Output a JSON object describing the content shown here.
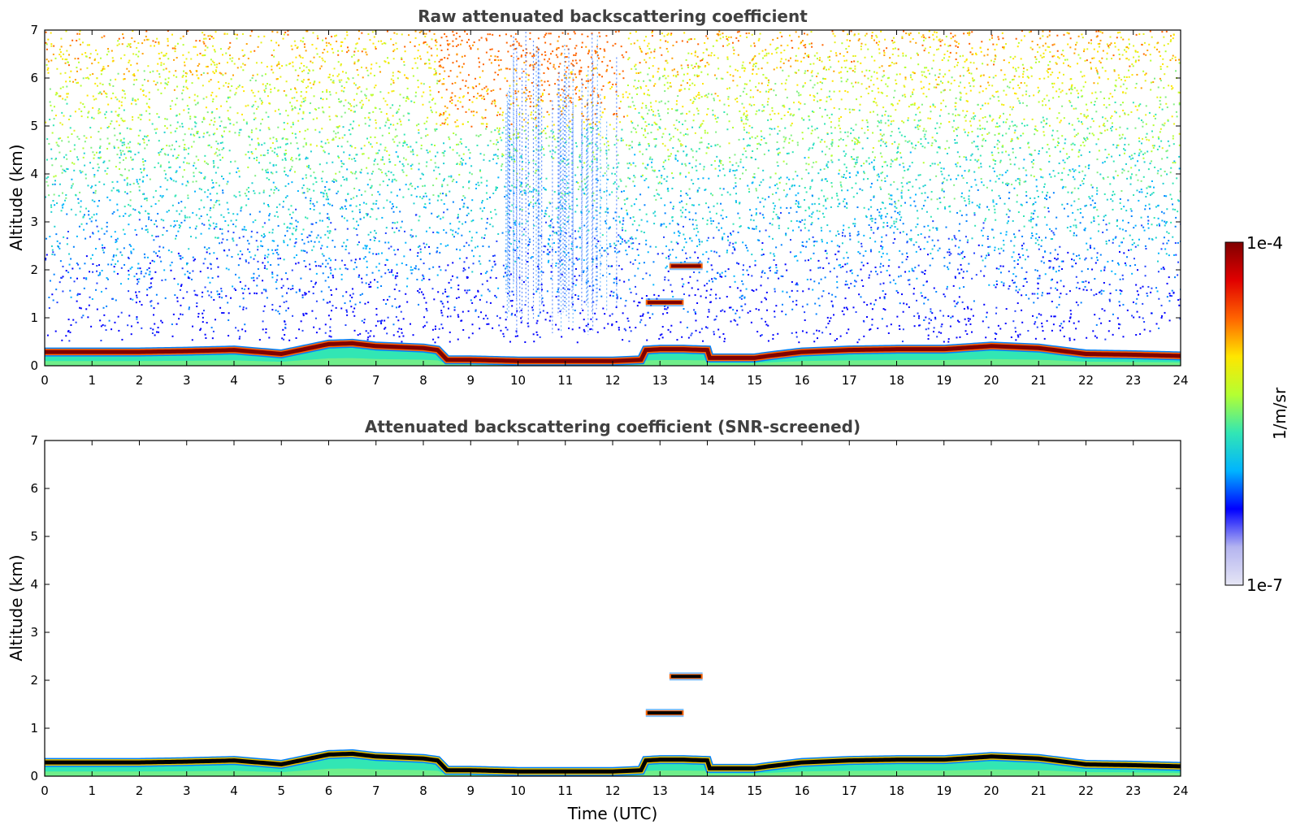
{
  "chart_data": [
    {
      "type": "heatmap",
      "title": "Raw attenuated backscattering coefficient",
      "xlabel": "",
      "ylabel": "Altitude (km)",
      "xlim": [
        0,
        24
      ],
      "ylim": [
        0,
        7
      ],
      "xticks": [
        0,
        1,
        2,
        3,
        4,
        5,
        6,
        7,
        8,
        9,
        10,
        11,
        12,
        13,
        14,
        15,
        16,
        17,
        18,
        19,
        20,
        21,
        22,
        23,
        24
      ],
      "yticks": [
        0,
        1,
        2,
        3,
        4,
        5,
        6,
        7
      ],
      "boundary_layer_top_km": [
        [
          0,
          0.35
        ],
        [
          1,
          0.35
        ],
        [
          2,
          0.35
        ],
        [
          3,
          0.37
        ],
        [
          4,
          0.4
        ],
        [
          5,
          0.3
        ],
        [
          6,
          0.55
        ],
        [
          6.5,
          0.57
        ],
        [
          7,
          0.5
        ],
        [
          8,
          0.45
        ],
        [
          8.3,
          0.4
        ],
        [
          8.5,
          0.15
        ],
        [
          9,
          0.15
        ],
        [
          10,
          0.12
        ],
        [
          11,
          0.12
        ],
        [
          12,
          0.12
        ],
        [
          12.6,
          0.15
        ],
        [
          12.7,
          0.4
        ],
        [
          13,
          0.42
        ],
        [
          13.5,
          0.42
        ],
        [
          14,
          0.4
        ],
        [
          14,
          0.2
        ],
        [
          15,
          0.2
        ],
        [
          15.3,
          0.25
        ],
        [
          16,
          0.35
        ],
        [
          17,
          0.4
        ],
        [
          18,
          0.42
        ],
        [
          19,
          0.42
        ],
        [
          20,
          0.5
        ],
        [
          21,
          0.45
        ],
        [
          22,
          0.3
        ],
        [
          23,
          0.28
        ],
        [
          24,
          0.25
        ]
      ],
      "cloud_layers": [
        {
          "t_start": 12.7,
          "t_end": 13.5,
          "alt_km": 1.32
        },
        {
          "t_start": 13.2,
          "t_end": 13.9,
          "alt_km": 2.08
        }
      ],
      "virga_period_utc": [
        9.7,
        12.2
      ],
      "features": {
        "noise_above_boundary_layer": true
      }
    },
    {
      "type": "heatmap",
      "title": "Attenuated backscattering coefficient (SNR-screened)",
      "xlabel": "Time (UTC)",
      "ylabel": "Altitude (km)",
      "xlim": [
        0,
        24
      ],
      "ylim": [
        0,
        7
      ],
      "xticks": [
        0,
        1,
        2,
        3,
        4,
        5,
        6,
        7,
        8,
        9,
        10,
        11,
        12,
        13,
        14,
        15,
        16,
        17,
        18,
        19,
        20,
        21,
        22,
        23,
        24
      ],
      "yticks": [
        0,
        1,
        2,
        3,
        4,
        5,
        6,
        7
      ],
      "boundary_layer_top_km": [
        [
          0,
          0.35
        ],
        [
          1,
          0.35
        ],
        [
          2,
          0.35
        ],
        [
          3,
          0.37
        ],
        [
          4,
          0.4
        ],
        [
          5,
          0.3
        ],
        [
          6,
          0.55
        ],
        [
          6.5,
          0.57
        ],
        [
          7,
          0.5
        ],
        [
          8,
          0.45
        ],
        [
          8.3,
          0.4
        ],
        [
          8.5,
          0.15
        ],
        [
          9,
          0.15
        ],
        [
          10,
          0.12
        ],
        [
          11,
          0.12
        ],
        [
          12,
          0.12
        ],
        [
          12.6,
          0.15
        ],
        [
          12.7,
          0.4
        ],
        [
          13,
          0.42
        ],
        [
          13.5,
          0.42
        ],
        [
          14,
          0.4
        ],
        [
          14,
          0.2
        ],
        [
          15,
          0.2
        ],
        [
          15.3,
          0.25
        ],
        [
          16,
          0.35
        ],
        [
          17,
          0.4
        ],
        [
          18,
          0.42
        ],
        [
          19,
          0.42
        ],
        [
          20,
          0.5
        ],
        [
          21,
          0.45
        ],
        [
          22,
          0.3
        ],
        [
          23,
          0.28
        ],
        [
          24,
          0.25
        ]
      ],
      "cloud_layers": [
        {
          "t_start": 12.7,
          "t_end": 13.5,
          "alt_km": 1.32
        },
        {
          "t_start": 13.2,
          "t_end": 13.9,
          "alt_km": 2.08
        }
      ],
      "features": {
        "noise_above_boundary_layer": false
      }
    }
  ],
  "colorbar": {
    "max_label": "1e-4",
    "min_label": "1e-7",
    "label": "1/m/sr",
    "colormap": "jet",
    "colors": [
      "#e6e6f5",
      "#b4b4f0",
      "#0000ff",
      "#00b4ff",
      "#32e6b4",
      "#b4ff32",
      "#ffe600",
      "#ff6400",
      "#e10000",
      "#800000"
    ]
  }
}
